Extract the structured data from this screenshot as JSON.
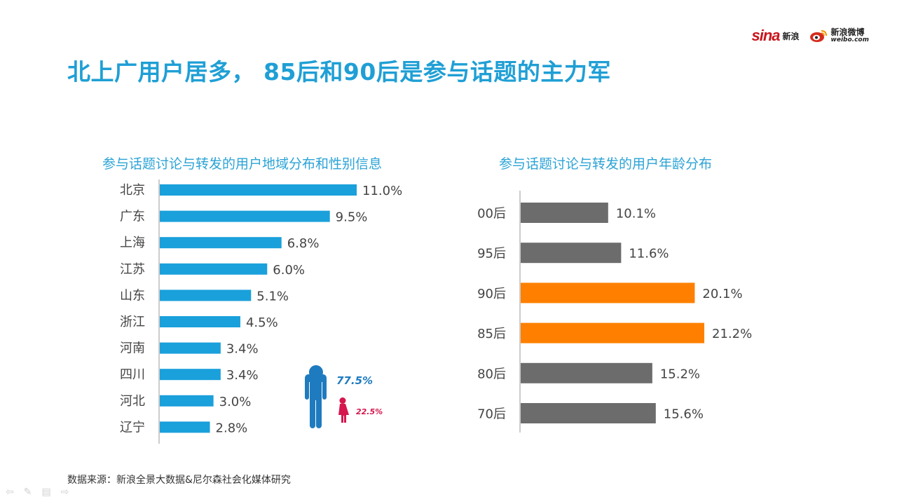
{
  "brand": {
    "sina_mark": "sina",
    "sina_word": "新浪",
    "weibo_cn": "新浪微博",
    "weibo_en": "weibo.com",
    "sina_color": "#c8161d"
  },
  "title": "北上广用户居多， 85后和90后是参与话题的主力军",
  "source": "数据来源：新浪全景大数据&尼尔森社会化媒体研究",
  "colors": {
    "title": "#1f9fd5",
    "region_bar": "#1aa0db",
    "age_bar": "#6d6c6c",
    "age_highlight": "#ff8000",
    "male": "#1f7bbf",
    "female": "#d5174d"
  },
  "icons": {
    "male": "male-person-icon",
    "female": "female-person-icon",
    "nav": [
      "prev-icon",
      "pen-icon",
      "slides-icon",
      "next-icon"
    ]
  },
  "chart_data": [
    {
      "type": "bar",
      "orientation": "horizontal",
      "title": "参与话题讨论与转发的用户地域分布和性别信息",
      "categories": [
        "北京",
        "广东",
        "上海",
        "江苏",
        "山东",
        "浙江",
        "河南",
        "四川",
        "河北",
        "辽宁"
      ],
      "values": [
        11.0,
        9.5,
        6.8,
        6.0,
        5.1,
        4.5,
        3.4,
        3.4,
        3.0,
        2.8
      ],
      "labels": [
        "11.0%",
        "9.5%",
        "6.8%",
        "6.0%",
        "5.1%",
        "4.5%",
        "3.4%",
        "3.4%",
        "3.0%",
        "2.8%"
      ],
      "xlim": [
        0,
        11.0
      ],
      "grid": false,
      "gender": {
        "male_label": "77.5%",
        "female_label": "22.5%",
        "male": 77.5,
        "female": 22.5
      }
    },
    {
      "type": "bar",
      "orientation": "horizontal",
      "title": "参与话题讨论与转发的用户年龄分布",
      "categories": [
        "00后",
        "95后",
        "90后",
        "85后",
        "80后",
        "70后"
      ],
      "values": [
        10.1,
        11.6,
        20.1,
        21.2,
        15.2,
        15.6
      ],
      "labels": [
        "10.1%",
        "11.6%",
        "20.1%",
        "21.2%",
        "15.2%",
        "15.6%"
      ],
      "highlight": [
        "90后",
        "85后"
      ],
      "xlim": [
        0,
        21.2
      ],
      "grid": false
    }
  ]
}
